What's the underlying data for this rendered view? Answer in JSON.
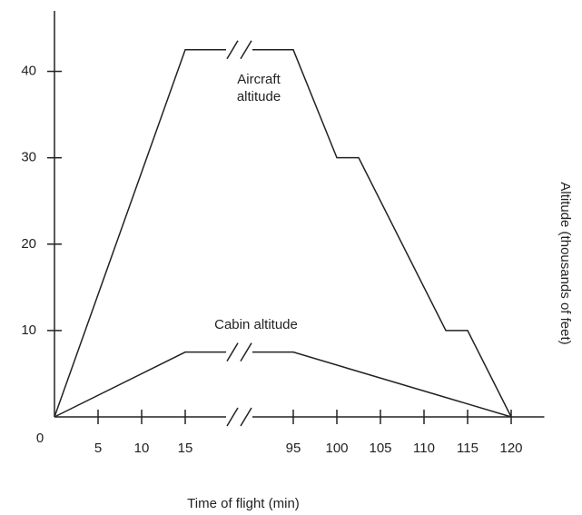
{
  "chart_data": {
    "type": "line",
    "x_label": "Time of flight (min)",
    "y_label": "Altitude (thousands of feet)",
    "xlim": [
      0,
      123.8
    ],
    "xbreak": [
      20,
      90
    ],
    "xticks": [
      0,
      5,
      10,
      15,
      95,
      100,
      105,
      110,
      115,
      120
    ],
    "ylim": [
      0,
      47
    ],
    "yticks": [
      10,
      20,
      30,
      40
    ],
    "series": [
      {
        "name": "Aircraft altitude",
        "color": "#222222",
        "x": [
          0,
          15,
          95,
          100,
          102.5,
          112.5,
          115,
          120
        ],
        "values": [
          0,
          42.5,
          42.5,
          30,
          30,
          10,
          10,
          0
        ]
      },
      {
        "name": "Cabin altitude",
        "color": "#222222",
        "x": [
          0,
          15,
          95,
          120
        ],
        "values": [
          0,
          7.5,
          7.5,
          0
        ]
      }
    ]
  }
}
